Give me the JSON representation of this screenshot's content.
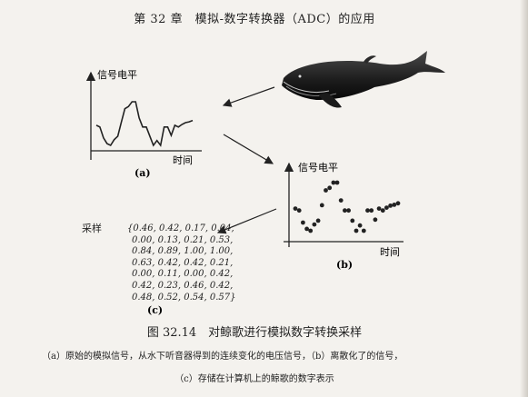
{
  "header": {
    "chapter_title": "第 32 章　模拟-数字转换器（ADC）的应用"
  },
  "panel_a": {
    "y_label": "信号电平",
    "x_label": "时间",
    "label": "(a)"
  },
  "panel_b": {
    "y_label": "信号电平",
    "x_label": "时间",
    "label": "(b)"
  },
  "panel_c": {
    "sampling_label": "采样",
    "label": "(c)",
    "sample_lines": [
      "{0.46, 0.42, 0.17, 0.04,",
      "0.00, 0.13, 0.21, 0.53,",
      "0.84, 0.89, 1.00, 1.00,",
      "0.63, 0.42, 0.42, 0.21,",
      "0.00, 0.11, 0.00, 0.42,",
      "0.42, 0.23, 0.46, 0.42,",
      "0.48, 0.52, 0.54, 0.57}"
    ]
  },
  "caption": {
    "main": "图 32.14　对鲸歌进行模拟数字转换采样",
    "sub_line1": "（a）原始的模拟信号，从水下听音器得到的连续变化的电压信号，（b）离散化了的信号，",
    "sub_line2": "（c）存储在计算机上的鲸歌的数字表示"
  },
  "chart_data": [
    {
      "type": "line",
      "panel": "(a)",
      "xlabel": "时间",
      "ylabel": "信号电平",
      "values": [
        0.46,
        0.42,
        0.17,
        0.04,
        0.0,
        0.13,
        0.21,
        0.53,
        0.84,
        0.89,
        1.0,
        1.0,
        0.63,
        0.42,
        0.42,
        0.21,
        0.0,
        0.11,
        0.0,
        0.42,
        0.42,
        0.23,
        0.46,
        0.42,
        0.48,
        0.52,
        0.54,
        0.57
      ],
      "ylim": [
        0,
        1
      ]
    },
    {
      "type": "scatter",
      "panel": "(b)",
      "xlabel": "时间",
      "ylabel": "信号电平",
      "values": [
        0.46,
        0.42,
        0.17,
        0.04,
        0.0,
        0.13,
        0.21,
        0.53,
        0.84,
        0.89,
        1.0,
        1.0,
        0.63,
        0.42,
        0.42,
        0.21,
        0.0,
        0.11,
        0.0,
        0.42,
        0.42,
        0.23,
        0.46,
        0.42,
        0.48,
        0.52,
        0.54,
        0.57
      ],
      "ylim": [
        0,
        1
      ]
    }
  ]
}
